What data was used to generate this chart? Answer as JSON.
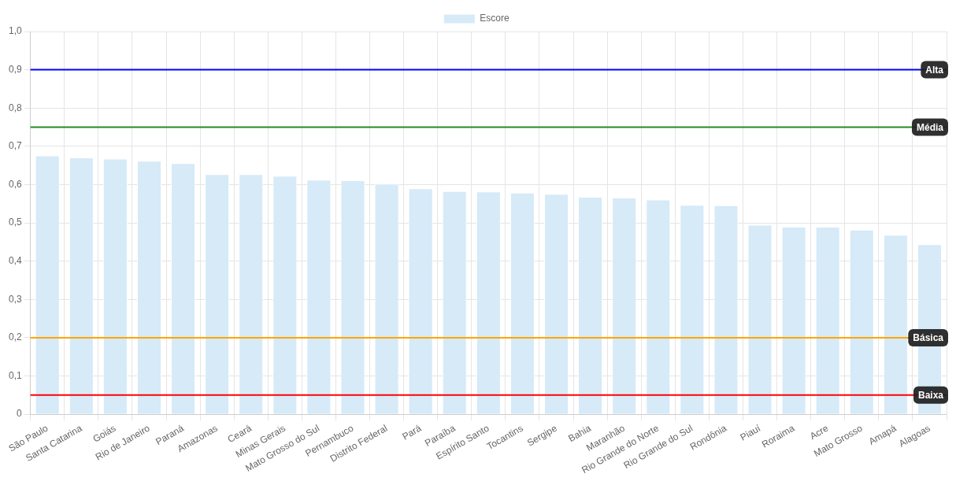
{
  "chart_data": {
    "type": "bar",
    "categories": [
      "São Paulo",
      "Santa Catarina",
      "Goiás",
      "Rio de Janeiro",
      "Paraná",
      "Amazonas",
      "Ceará",
      "Minas Gerais",
      "Mato Grosso do Sul",
      "Pernambuco",
      "Distrito Federal",
      "Pará",
      "Paraíba",
      "Espírito Santo",
      "Tocantins",
      "Sergipe",
      "Bahia",
      "Maranhão",
      "Rio Grande do Norte",
      "Rio Grande do Sul",
      "Rondônia",
      "Piauí",
      "Roraima",
      "Acre",
      "Mato Grosso",
      "Amapá",
      "Alagoas"
    ],
    "series": [
      {
        "name": "Escore",
        "color": "#d6eaf8",
        "values": [
          0.676,
          0.671,
          0.668,
          0.662,
          0.656,
          0.627,
          0.627,
          0.623,
          0.613,
          0.611,
          0.602,
          0.59,
          0.583,
          0.582,
          0.579,
          0.576,
          0.568,
          0.566,
          0.561,
          0.547,
          0.546,
          0.495,
          0.49,
          0.49,
          0.482,
          0.469,
          0.444
        ]
      }
    ],
    "ylim": [
      0,
      1
    ],
    "yticks": [
      {
        "value": 0,
        "label": "0"
      },
      {
        "value": 0.1,
        "label": "0,1"
      },
      {
        "value": 0.2,
        "label": "0,2"
      },
      {
        "value": 0.3,
        "label": "0,3"
      },
      {
        "value": 0.4,
        "label": "0,4"
      },
      {
        "value": 0.5,
        "label": "0,5"
      },
      {
        "value": 0.6,
        "label": "0,6"
      },
      {
        "value": 0.7,
        "label": "0,7"
      },
      {
        "value": 0.8,
        "label": "0,8"
      },
      {
        "value": 0.9,
        "label": "0,9"
      },
      {
        "value": 1,
        "label": "1,0"
      }
    ],
    "ref_lines": [
      {
        "axis": "y",
        "value": 0.9,
        "label": "Alta",
        "color": "#0000ff"
      },
      {
        "axis": "y",
        "value": 0.75,
        "label": "Média",
        "color": "#228b22"
      },
      {
        "axis": "y",
        "value": 0.2,
        "label": "Básica",
        "color": "#ffa500"
      },
      {
        "axis": "y",
        "value": 0.05,
        "label": "Baixa",
        "color": "#ff0000"
      }
    ],
    "grid": true,
    "legend": "top"
  }
}
